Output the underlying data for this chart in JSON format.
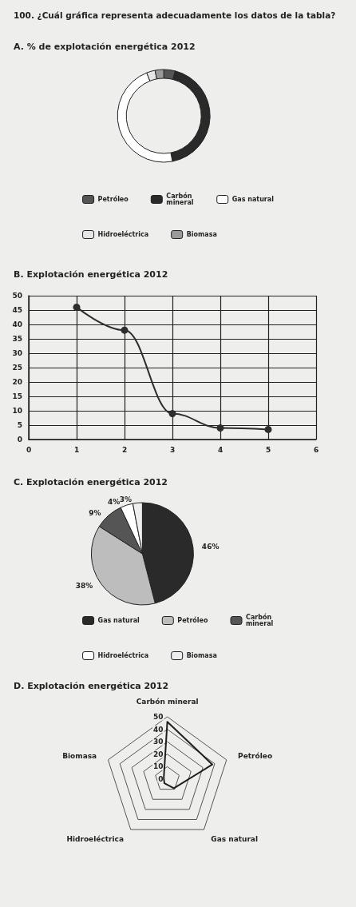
{
  "chart_data": [
    {
      "type": "other",
      "title": "100. ¿Cuál gráfica representa adecuadamente los datos de la tabla?"
    },
    {
      "type": "donut",
      "title": "A. % de explotación energética 2012",
      "categories": [
        "Petróleo",
        "Carbón mineral",
        "Gas natural",
        "Hidroeléctrica",
        "Biomasa"
      ],
      "values": [
        4,
        43,
        47,
        3,
        3
      ],
      "colors": [
        "#555555",
        "#2a2a2a",
        "#ffffff",
        "#e6e6e6",
        "#9a9a9a"
      ],
      "legend": "bottom"
    },
    {
      "type": "line",
      "title": "B. Explotación energética 2012",
      "x": [
        1,
        2,
        3,
        4,
        5
      ],
      "values": [
        46,
        38,
        9,
        4,
        3.5
      ],
      "color": "#2e2e2e",
      "xlim": [
        0,
        6
      ],
      "xticks": [
        0,
        1,
        2,
        3,
        4,
        5,
        6
      ],
      "ylim": [
        0,
        50
      ],
      "yticks": [
        0,
        5,
        10,
        15,
        20,
        25,
        30,
        35,
        40,
        45,
        50
      ],
      "grid": true,
      "marker": "circle",
      "line_style": "solid"
    },
    {
      "type": "pie",
      "title": "C. Explotación energética 2012",
      "categories": [
        "Gas natural",
        "Petróleo",
        "Carbón mineral",
        "Hidroeléctrica",
        "Biomasa"
      ],
      "values": [
        46,
        38,
        9,
        4,
        3
      ],
      "colors": [
        "#2a2a2a",
        "#bdbdbd",
        "#555555",
        "#ffffff",
        "#eeeeee"
      ],
      "value_labels": [
        "46%",
        "38%",
        "9%",
        "4%",
        "3%"
      ],
      "legend": "bottom"
    },
    {
      "type": "radar",
      "title": "D. Explotación energética 2012",
      "categories": [
        "Carbón mineral",
        "Petróleo",
        "Gas natural",
        "Hidroeléctrica",
        "Biomasa"
      ],
      "ylim": [
        0,
        50
      ],
      "yticks": [
        0,
        10,
        20,
        30,
        40,
        50
      ],
      "series": [
        {
          "color": "#1e1e1e",
          "values": [
            46,
            38,
            9,
            4,
            3
          ]
        }
      ]
    }
  ]
}
